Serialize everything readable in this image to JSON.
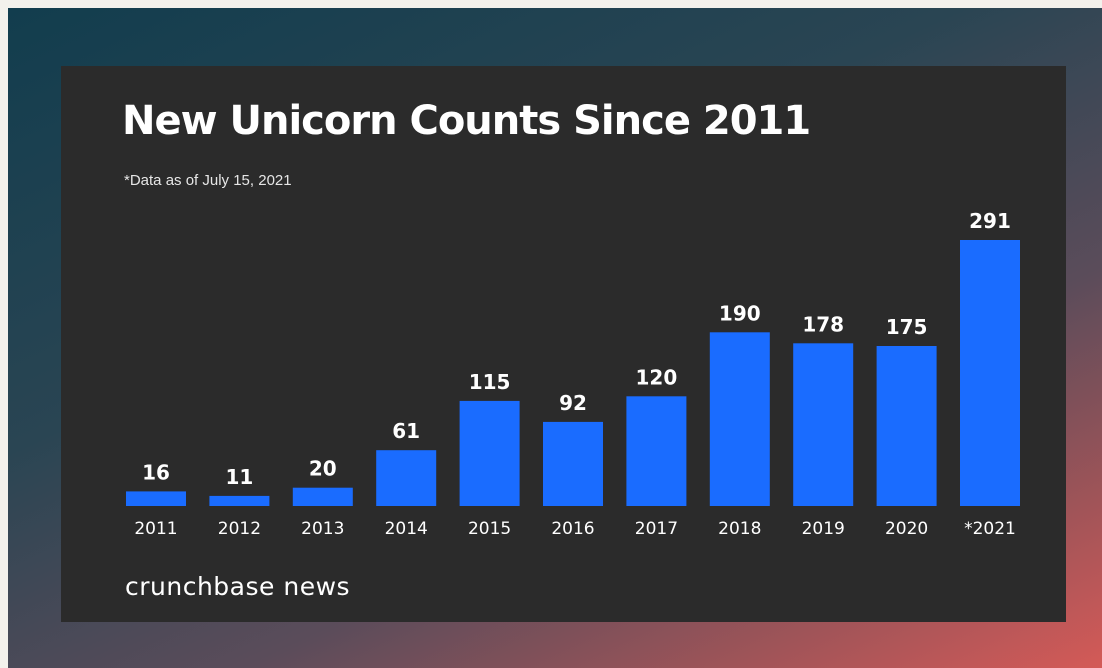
{
  "chart_data": {
    "type": "bar",
    "title": "New Unicorn Counts Since 2011",
    "subtitle": "*Data as of July 15, 2021",
    "categories": [
      "2011",
      "2012",
      "2013",
      "2014",
      "2015",
      "2016",
      "2017",
      "2018",
      "2019",
      "2020",
      "*2021"
    ],
    "values": [
      16,
      11,
      20,
      61,
      115,
      92,
      120,
      190,
      178,
      175,
      291
    ],
    "xlabel": "",
    "ylabel": "",
    "ylim": [
      0,
      291
    ],
    "grid": false,
    "data_labels": true,
    "colors": {
      "bar": "#1a6cff",
      "background": "#2b2b2b",
      "text": "#ffffff"
    }
  },
  "brand": {
    "name": "crunchbase news"
  }
}
